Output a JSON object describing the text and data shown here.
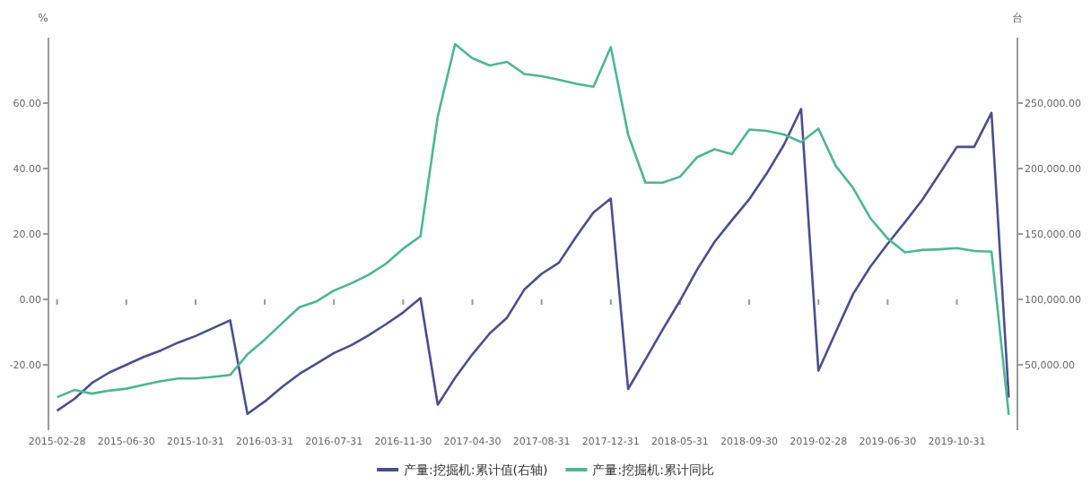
{
  "chart_data": {
    "type": "line",
    "ylabel": "%",
    "y2label": "台",
    "legend": "bottom",
    "categories": [
      "2015-02-28",
      null,
      null,
      null,
      "2015-06-30",
      null,
      null,
      null,
      "2015-10-31",
      null,
      null,
      null,
      "2016-03-31",
      null,
      null,
      null,
      "2016-07-31",
      null,
      null,
      null,
      "2016-11-30",
      null,
      null,
      null,
      "2017-04-30",
      null,
      null,
      null,
      "2017-08-31",
      null,
      null,
      null,
      "2017-12-31",
      null,
      null,
      null,
      "2018-05-31",
      null,
      null,
      null,
      "2018-09-30",
      null,
      null,
      null,
      "2019-02-28",
      null,
      null,
      null,
      "2019-06-30",
      null,
      null,
      null,
      "2019-10-31",
      null,
      null,
      null
    ],
    "ylim": [
      -40,
      80
    ],
    "yticks": [
      {
        "value": -20,
        "label": "-20.00"
      },
      {
        "value": 0,
        "label": "0.00"
      },
      {
        "value": 20,
        "label": "20.00"
      },
      {
        "value": 40,
        "label": "40.00"
      },
      {
        "value": 60,
        "label": "60.00"
      }
    ],
    "y2lim": [
      0,
      300000
    ],
    "y2ticks": [
      {
        "value": 50000,
        "label": "50,000.00"
      },
      {
        "value": 100000,
        "label": "100,000.00"
      },
      {
        "value": 150000,
        "label": "150,000.00"
      },
      {
        "value": 200000,
        "label": "200,000.00"
      },
      {
        "value": 250000,
        "label": "250,000.00"
      }
    ],
    "series": [
      {
        "name": "产量:挖掘机:累计值(右轴)",
        "color": "#4b4f8c",
        "axis": "y2",
        "values": [
          15000,
          24000,
          36000,
          44000,
          50000,
          56000,
          61000,
          67000,
          72000,
          78000,
          84000,
          12500,
          22000,
          33000,
          43000,
          51000,
          59000,
          65000,
          72500,
          81000,
          90000,
          101000,
          19500,
          40000,
          58000,
          74000,
          86000,
          107500,
          119500,
          128000,
          148000,
          166500,
          177000,
          31500,
          54000,
          77000,
          99000,
          123000,
          144000,
          160500,
          176500,
          196000,
          218000,
          245500,
          45500,
          75000,
          104000,
          125000,
          142500,
          159000,
          176000,
          196000,
          216500,
          216500,
          242500,
          25000
        ]
      },
      {
        "name": "产量:挖掘机:累计同比",
        "color": "#4fb594",
        "values": [
          -29.9,
          -27.7,
          -28.8,
          -27.9,
          -27.3,
          -26.1,
          -25.0,
          -24.2,
          -24.2,
          -23.7,
          -23.1,
          -16.8,
          -12.3,
          -7.3,
          -2.4,
          -0.6,
          2.7,
          4.9,
          7.5,
          10.9,
          15.5,
          19.3,
          55.9,
          78.0,
          73.7,
          71.5,
          72.6,
          68.9,
          68.2,
          67.1,
          65.9,
          65.0,
          77.1,
          50.4,
          35.7,
          35.7,
          37.5,
          43.5,
          45.9,
          44.4,
          51.9,
          51.5,
          50.4,
          48.1,
          52.2,
          40.8,
          34.1,
          24.8,
          18.6,
          14.4,
          15.1,
          15.3,
          15.7,
          14.8,
          14.6,
          -35.3
        ]
      }
    ]
  }
}
